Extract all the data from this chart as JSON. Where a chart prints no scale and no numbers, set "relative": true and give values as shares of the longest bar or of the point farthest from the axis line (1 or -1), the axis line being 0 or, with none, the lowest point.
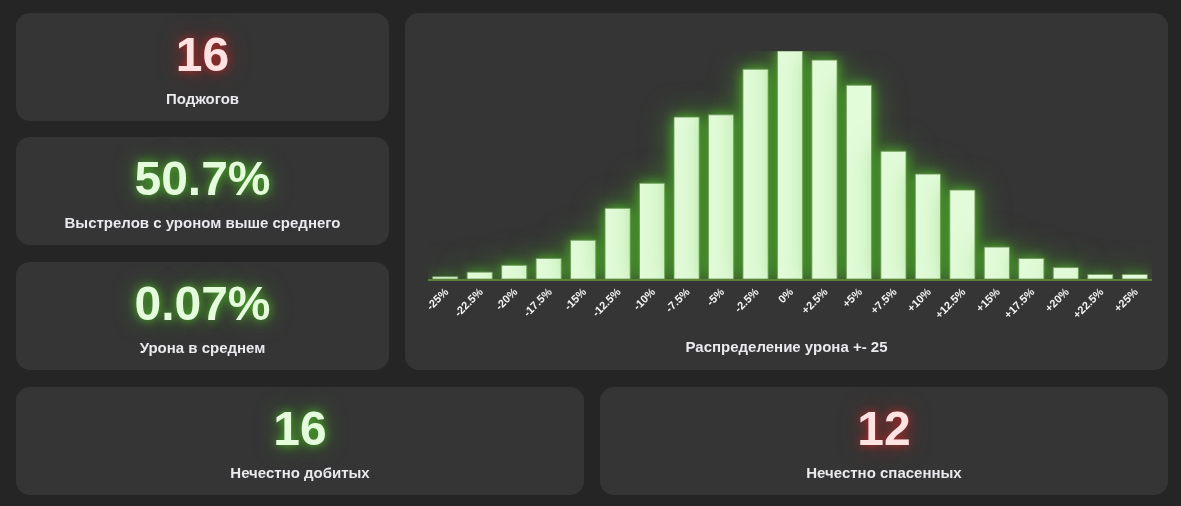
{
  "chart_data": [
    {
      "type": "other",
      "title": "16",
      "subtitle": "Поджогов",
      "color": "#ffe2e2"
    },
    {
      "type": "bar",
      "title": "Распределение урона +- 25",
      "categories": [
        "-25%",
        "-22.5%",
        "-20%",
        "-17.5%",
        "-15%",
        "-12.5%",
        "-10%",
        "-7.5%",
        "-5%",
        "-2.5%",
        "0%",
        "+2.5%",
        "+5%",
        "+7.5%",
        "+10%",
        "+12.5%",
        "+15%",
        "+17.5%",
        "+20%",
        "+22.5%",
        "+25%"
      ],
      "values": [
        0.01,
        0.03,
        0.06,
        0.09,
        0.17,
        0.31,
        0.42,
        0.71,
        0.72,
        0.92,
        1,
        0.96,
        0.85,
        0.56,
        0.46,
        0.39,
        0.14,
        0.09,
        0.05,
        0.02,
        0.02
      ],
      "color": "#e2fbd9",
      "relative": true,
      "tick_labels": "x"
    },
    {
      "type": "other",
      "title": "50.7%",
      "subtitle": "Выстрелов с уроном выше среднего",
      "color": "#e4fbdc"
    },
    {
      "type": "other",
      "title": "0.07%",
      "subtitle": "Урона в среднем",
      "color": "#e4fbdc"
    },
    {
      "type": "other",
      "title": "16",
      "subtitle": "Нечестно добитых",
      "color": "#e4fbdc"
    },
    {
      "type": "other",
      "title": "12",
      "subtitle": "Нечестно спасенных",
      "color": "#ffe2e2"
    }
  ]
}
